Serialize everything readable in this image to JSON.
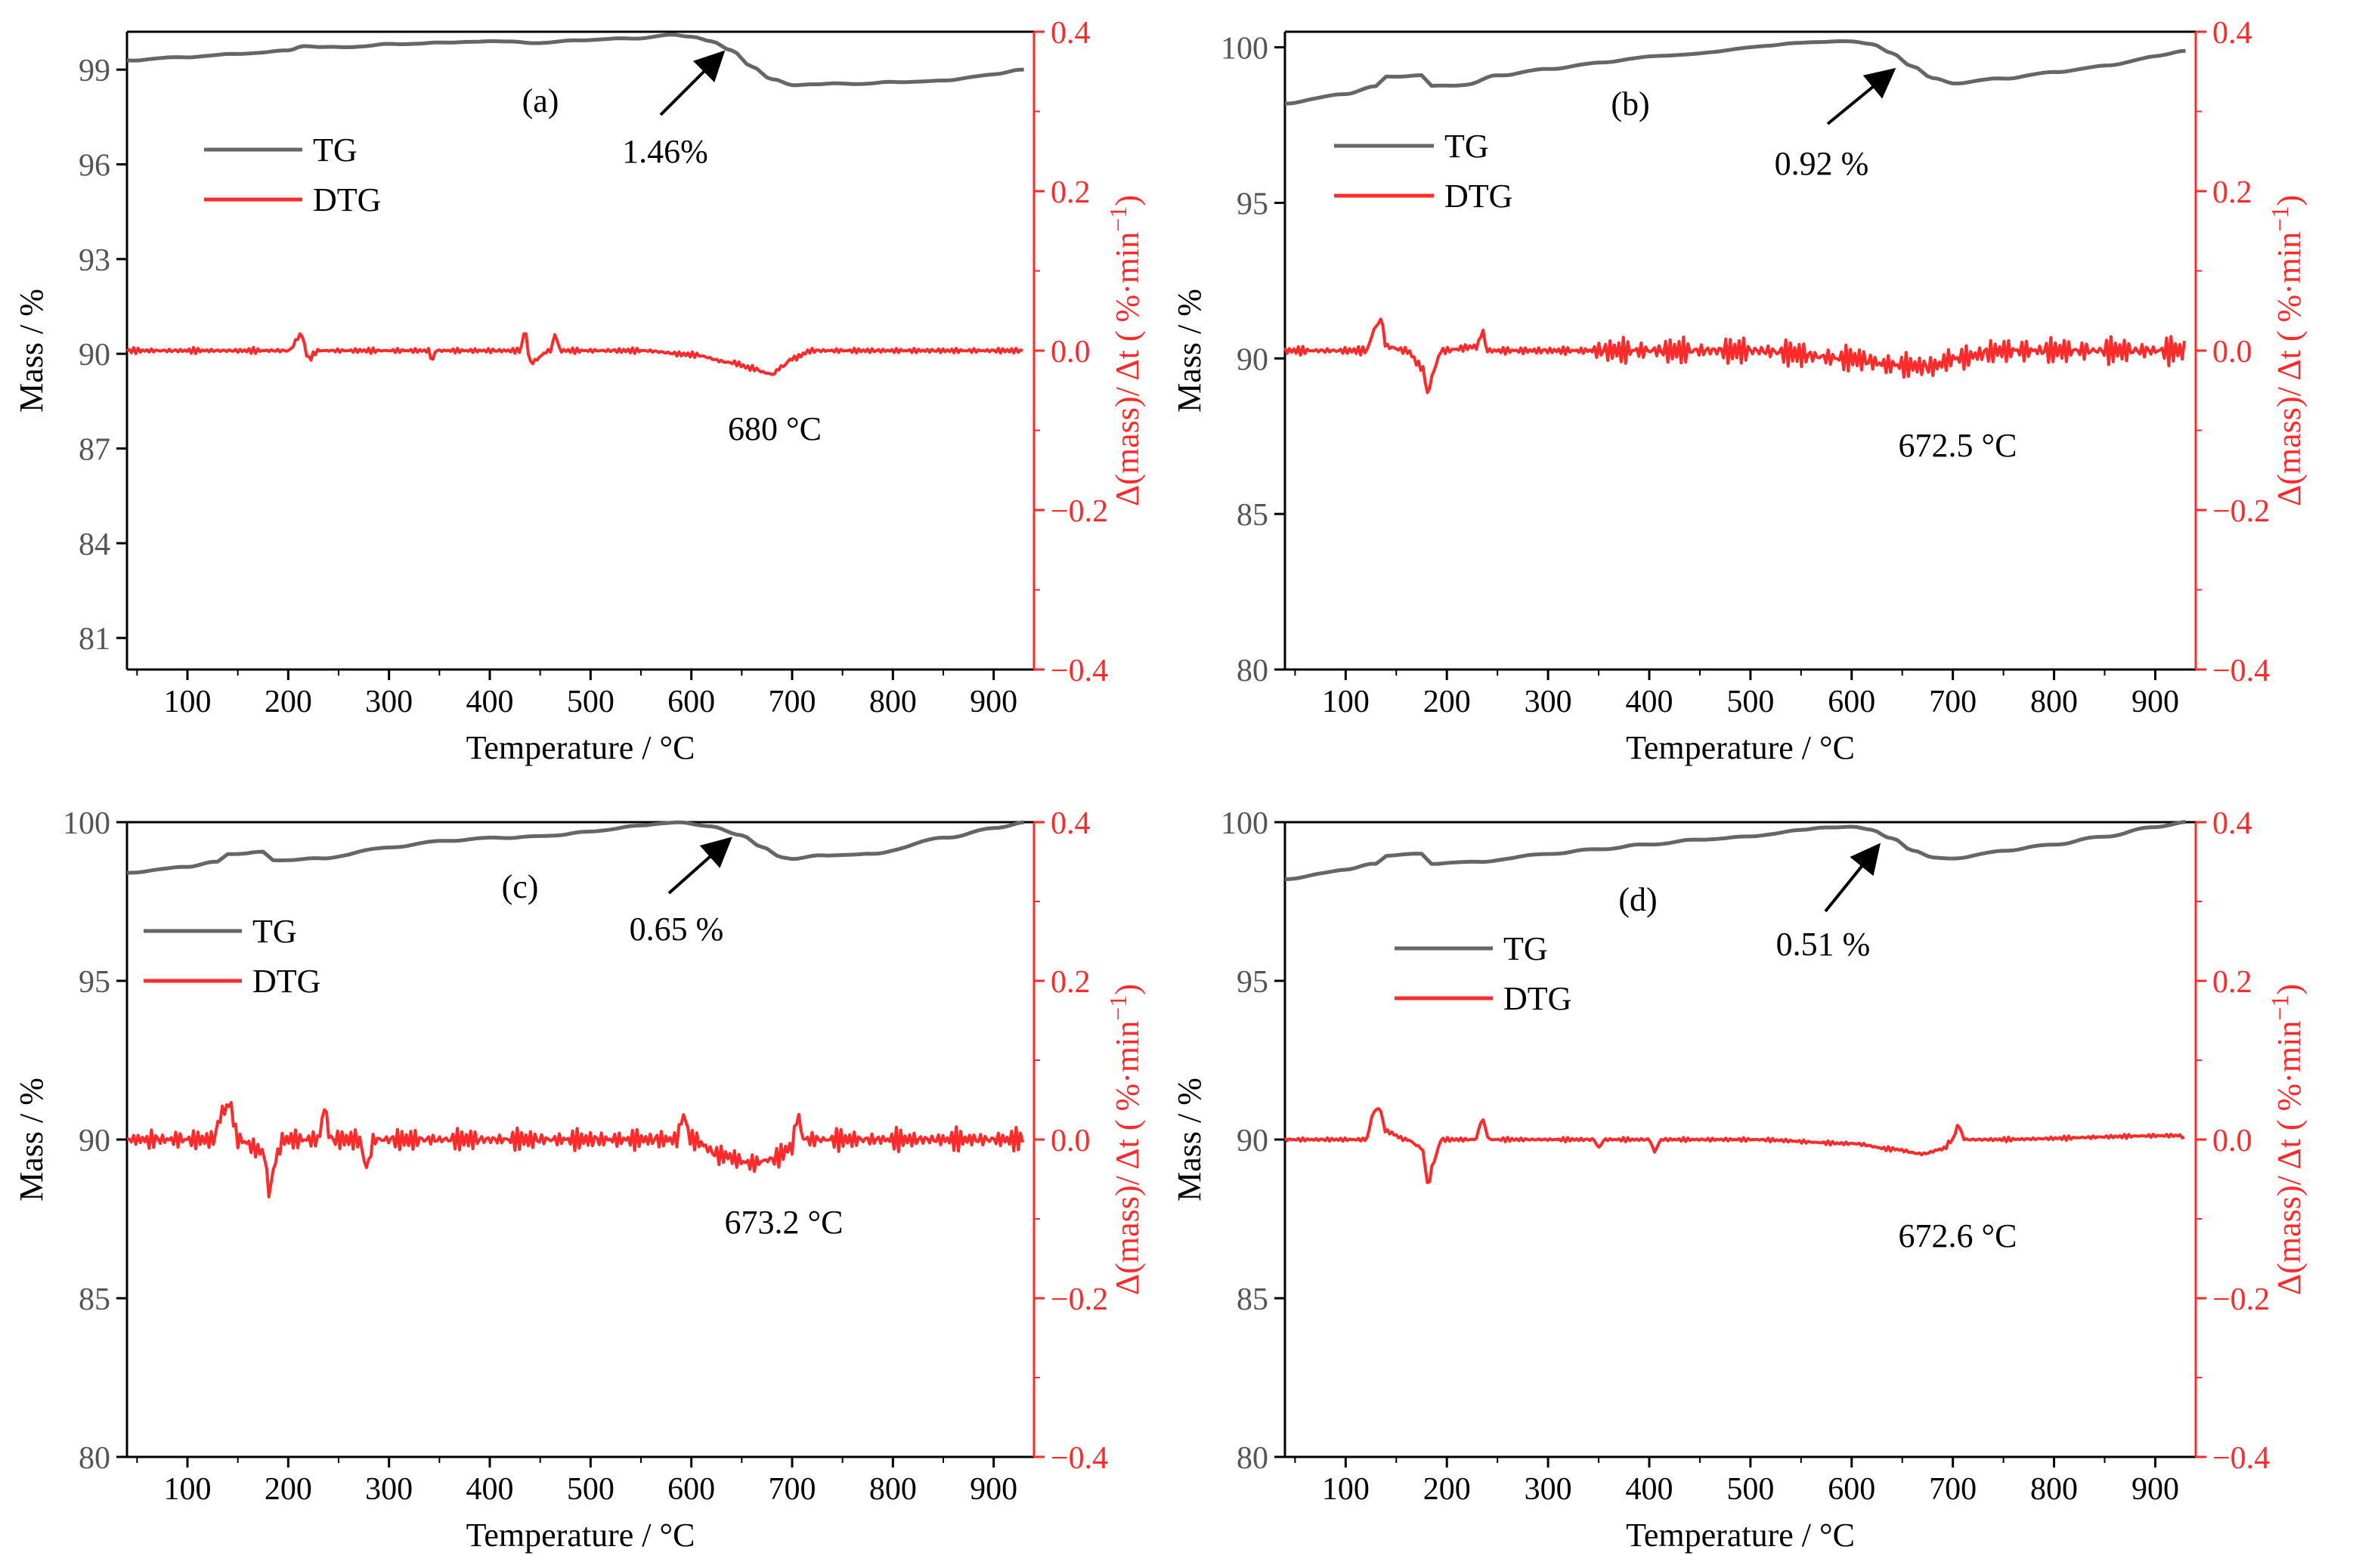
{
  "colors": {
    "tg": "#666666",
    "dtg": "#ff2a2a",
    "axis": "#000000"
  },
  "chart_data": [
    {
      "type": "line",
      "panel_label": "(a)",
      "xlabel": "Temperature  / °C",
      "ylabel": "Mass  / %",
      "y2label": "Δ(mass)/ Δt ( %·min",
      "y2label_sup": "−1",
      "y2label_end": ")",
      "xlim": [
        40,
        940
      ],
      "ylim": [
        80,
        100.2
      ],
      "y2lim": [
        -0.4,
        0.4
      ],
      "xticks": [
        100,
        200,
        300,
        400,
        500,
        600,
        700,
        800,
        900
      ],
      "yticks": [
        81,
        84,
        87,
        90,
        93,
        96,
        99
      ],
      "y2ticks": [
        -0.4,
        -0.2,
        0.0,
        0.2,
        0.4
      ],
      "xtick_labels": [
        "100",
        "200",
        "300",
        "400",
        "500",
        "600",
        "700",
        "800",
        "900"
      ],
      "ytick_labels": [
        "81",
        "84",
        "87",
        "90",
        "93",
        "96",
        "99"
      ],
      "y2tick_labels": [
        "−0.4",
        "−0.2",
        "0.0",
        "0.2",
        "0.4"
      ],
      "legend": [
        "TG",
        "DTG"
      ],
      "annotations": {
        "mass_loss": "1.46%",
        "peak_temp": "680 °C"
      },
      "series": [
        {
          "name": "TG",
          "axis": "left",
          "x": [
            40,
            100,
            150,
            200,
            215,
            250,
            300,
            350,
            400,
            450,
            500,
            550,
            580,
            600,
            620,
            640,
            660,
            680,
            700,
            720,
            760,
            800,
            850,
            900,
            930
          ],
          "values": [
            99.3,
            99.4,
            99.5,
            99.6,
            99.75,
            99.7,
            99.8,
            99.85,
            99.9,
            99.85,
            99.95,
            100.0,
            100.1,
            100.05,
            99.9,
            99.6,
            99.1,
            98.7,
            98.5,
            98.55,
            98.55,
            98.6,
            98.65,
            98.85,
            99.0
          ]
        },
        {
          "name": "DTG",
          "axis": "right",
          "noise": 0.004,
          "x": [
            40,
            200,
            213,
            220,
            230,
            260,
            340,
            343,
            346,
            430,
            435,
            440,
            460,
            465,
            470,
            550,
            600,
            640,
            660,
            675,
            680,
            690,
            700,
            720,
            800,
            930
          ],
          "values": [
            0.0,
            0.0,
            0.02,
            -0.01,
            0.0,
            0.0,
            0.0,
            -0.015,
            0.0,
            0.0,
            0.025,
            -0.015,
            0.0,
            0.02,
            0.0,
            0.0,
            -0.005,
            -0.015,
            -0.022,
            -0.028,
            -0.03,
            -0.02,
            -0.01,
            0.0,
            0.0,
            0.0
          ]
        }
      ]
    },
    {
      "type": "line",
      "panel_label": "(b)",
      "xlabel": "Temperature  / °C",
      "ylabel": "Mass  / %",
      "y2label": "Δ(mass)/ Δt ( %·min",
      "y2label_sup": "−1",
      "y2label_end": ")",
      "xlim": [
        40,
        940
      ],
      "ylim": [
        80,
        100.5
      ],
      "y2lim": [
        -0.4,
        0.4
      ],
      "xticks": [
        100,
        200,
        300,
        400,
        500,
        600,
        700,
        800,
        900
      ],
      "yticks": [
        80,
        85,
        90,
        95,
        100
      ],
      "y2ticks": [
        -0.4,
        -0.2,
        0.0,
        0.2,
        0.4
      ],
      "xtick_labels": [
        "100",
        "200",
        "300",
        "400",
        "500",
        "600",
        "700",
        "800",
        "900"
      ],
      "ytick_labels": [
        "80",
        "85",
        "90",
        "95",
        "100"
      ],
      "y2tick_labels": [
        "−0.4",
        "−0.2",
        "0.0",
        "0.2",
        "0.4"
      ],
      "legend": [
        "TG",
        "DTG"
      ],
      "annotations": {
        "mass_loss": "0.92 %",
        "peak_temp": "672.5 °C"
      },
      "series": [
        {
          "name": "TG",
          "axis": "left",
          "x": [
            40,
            100,
            130,
            140,
            175,
            185,
            220,
            250,
            300,
            350,
            400,
            450,
            500,
            550,
            600,
            620,
            640,
            660,
            680,
            700,
            750,
            800,
            850,
            900,
            930
          ],
          "values": [
            98.2,
            98.5,
            98.75,
            99.05,
            99.1,
            98.75,
            98.8,
            99.1,
            99.3,
            99.5,
            99.7,
            99.8,
            100.0,
            100.15,
            100.2,
            100.1,
            99.8,
            99.4,
            99.0,
            98.85,
            99.0,
            99.2,
            99.4,
            99.7,
            99.9
          ]
        },
        {
          "name": "DTG",
          "axis": "right",
          "noise": 0.006,
          "noise_boost": {
            "from": 340,
            "to": 940,
            "amp": 0.02
          },
          "x": [
            40,
            120,
            130,
            135,
            140,
            160,
            175,
            182,
            185,
            195,
            230,
            235,
            240,
            500,
            600,
            640,
            680,
            700,
            750,
            930
          ],
          "values": [
            0.0,
            0.0,
            0.03,
            0.04,
            0.005,
            0.0,
            -0.02,
            -0.055,
            -0.03,
            0.0,
            0.005,
            0.025,
            0.0,
            0.0,
            -0.01,
            -0.018,
            -0.02,
            -0.01,
            0.0,
            0.0
          ]
        }
      ]
    },
    {
      "type": "line",
      "panel_label": "(c)",
      "xlabel": "Temperature  / °C",
      "ylabel": "Mass  / %",
      "y2label": "Δ(mass)/ Δt ( %·min",
      "y2label_sup": "−1",
      "y2label_end": ")",
      "xlim": [
        40,
        940
      ],
      "ylim": [
        80,
        100
      ],
      "y2lim": [
        -0.4,
        0.4
      ],
      "xticks": [
        100,
        200,
        300,
        400,
        500,
        600,
        700,
        800,
        900
      ],
      "yticks": [
        80,
        85,
        90,
        95,
        100
      ],
      "y2ticks": [
        -0.4,
        -0.2,
        0.0,
        0.2,
        0.4
      ],
      "xtick_labels": [
        "100",
        "200",
        "300",
        "400",
        "500",
        "600",
        "700",
        "800",
        "900"
      ],
      "ytick_labels": [
        "80",
        "85",
        "90",
        "95",
        "100"
      ],
      "y2tick_labels": [
        "−0.4",
        "−0.2",
        "0.0",
        "0.2",
        "0.4"
      ],
      "legend": [
        "TG",
        "DTG"
      ],
      "annotations": {
        "mass_loss": "0.65 %",
        "peak_temp": "673.2 °C"
      },
      "series": [
        {
          "name": "TG",
          "axis": "left",
          "x": [
            40,
            100,
            130,
            140,
            175,
            185,
            230,
            300,
            350,
            400,
            450,
            500,
            550,
            590,
            620,
            650,
            670,
            690,
            700,
            730,
            780,
            850,
            900,
            930
          ],
          "values": [
            98.4,
            98.6,
            98.75,
            99.0,
            99.05,
            98.8,
            98.85,
            99.2,
            99.4,
            99.5,
            99.55,
            99.7,
            99.9,
            100.0,
            99.85,
            99.6,
            99.2,
            98.9,
            98.85,
            98.95,
            99.0,
            99.5,
            99.8,
            100.0
          ]
        },
        {
          "name": "DTG",
          "axis": "right",
          "noise": 0.008,
          "noise_boost": {
            "from": 60,
            "to": 940,
            "amp": 0.016
          },
          "x": [
            40,
            125,
            135,
            142,
            150,
            175,
            182,
            186,
            195,
            230,
            236,
            242,
            270,
            278,
            285,
            585,
            592,
            600,
            630,
            660,
            680,
            700,
            705,
            712,
            730,
            930
          ],
          "values": [
            0.0,
            0.0,
            0.035,
            0.045,
            0.0,
            -0.015,
            -0.068,
            -0.03,
            0.0,
            0.0,
            0.04,
            0.0,
            0.0,
            -0.035,
            0.0,
            0.0,
            0.03,
            0.0,
            -0.02,
            -0.03,
            -0.025,
            -0.01,
            0.03,
            0.0,
            0.0,
            0.0
          ]
        }
      ]
    },
    {
      "type": "line",
      "panel_label": "(d)",
      "xlabel": "Temperature  / °C",
      "ylabel": "Mass  / %",
      "y2label": "Δ(mass)/ Δt ( %·min",
      "y2label_sup": "−1",
      "y2label_end": ")",
      "xlim": [
        40,
        940
      ],
      "ylim": [
        80,
        100
      ],
      "y2lim": [
        -0.4,
        0.4
      ],
      "xticks": [
        100,
        200,
        300,
        400,
        500,
        600,
        700,
        800,
        900
      ],
      "yticks": [
        80,
        85,
        90,
        95,
        100
      ],
      "y2ticks": [
        -0.4,
        -0.2,
        0.0,
        0.2,
        0.4
      ],
      "xtick_labels": [
        "100",
        "200",
        "300",
        "400",
        "500",
        "600",
        "700",
        "800",
        "900"
      ],
      "ytick_labels": [
        "80",
        "85",
        "90",
        "95",
        "100"
      ],
      "y2tick_labels": [
        "−0.4",
        "−0.2",
        "0.0",
        "0.2",
        "0.4"
      ],
      "legend": [
        "TG",
        "DTG"
      ],
      "annotations": {
        "mass_loss": "0.51 %",
        "peak_temp": "672.6 °C"
      },
      "series": [
        {
          "name": "TG",
          "axis": "left",
          "x": [
            40,
            100,
            130,
            140,
            175,
            185,
            230,
            300,
            350,
            400,
            450,
            500,
            550,
            580,
            600,
            620,
            640,
            660,
            680,
            700,
            750,
            800,
            850,
            900,
            930
          ],
          "values": [
            98.2,
            98.5,
            98.7,
            98.95,
            99.0,
            98.7,
            98.75,
            99.0,
            99.15,
            99.3,
            99.45,
            99.55,
            99.75,
            99.85,
            99.85,
            99.75,
            99.5,
            99.1,
            98.9,
            98.85,
            99.1,
            99.3,
            99.55,
            99.85,
            100.0
          ]
        },
        {
          "name": "DTG",
          "axis": "right",
          "noise": 0.003,
          "x": [
            40,
            120,
            128,
            133,
            140,
            160,
            175,
            182,
            186,
            195,
            228,
            235,
            242,
            345,
            350,
            356,
            400,
            405,
            412,
            500,
            600,
            640,
            670,
            690,
            700,
            705,
            712,
            730,
            925,
            930
          ],
          "values": [
            0.0,
            0.0,
            0.035,
            0.04,
            0.01,
            0.0,
            -0.01,
            -0.058,
            -0.03,
            0.0,
            0.0,
            0.025,
            0.0,
            0.0,
            -0.01,
            0.0,
            0.0,
            -0.015,
            0.0,
            0.0,
            -0.005,
            -0.012,
            -0.018,
            -0.012,
            0.0,
            0.018,
            0.0,
            0.0,
            0.005,
            0.0
          ]
        }
      ]
    }
  ]
}
